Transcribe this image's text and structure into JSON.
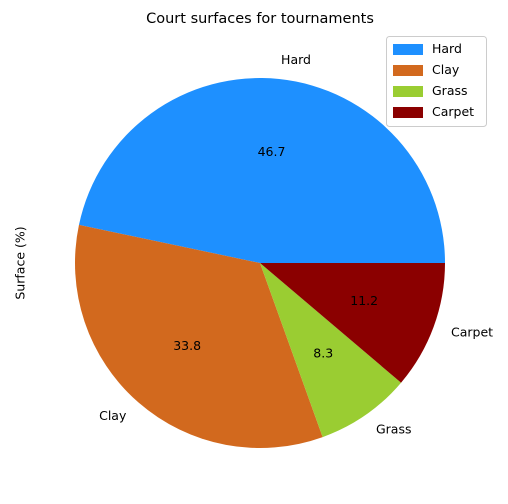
{
  "chart_data": {
    "type": "pie",
    "title": "Court surfaces for tournaments",
    "ylabel": "Surface (%)",
    "labels": [
      "Hard",
      "Clay",
      "Grass",
      "Carpet"
    ],
    "values": [
      46.7,
      33.8,
      8.3,
      11.2
    ],
    "pct_labels": [
      "46.7",
      "33.8",
      "8.3",
      "11.2"
    ],
    "colors": [
      "#1e90ff",
      "#d2691e",
      "#9acd32",
      "#8b0000"
    ],
    "start_angle_deg": 0,
    "direction": "counterclockwise",
    "legend": {
      "position": "top-right",
      "entries": [
        "Hard",
        "Clay",
        "Grass",
        "Carpet"
      ]
    }
  }
}
